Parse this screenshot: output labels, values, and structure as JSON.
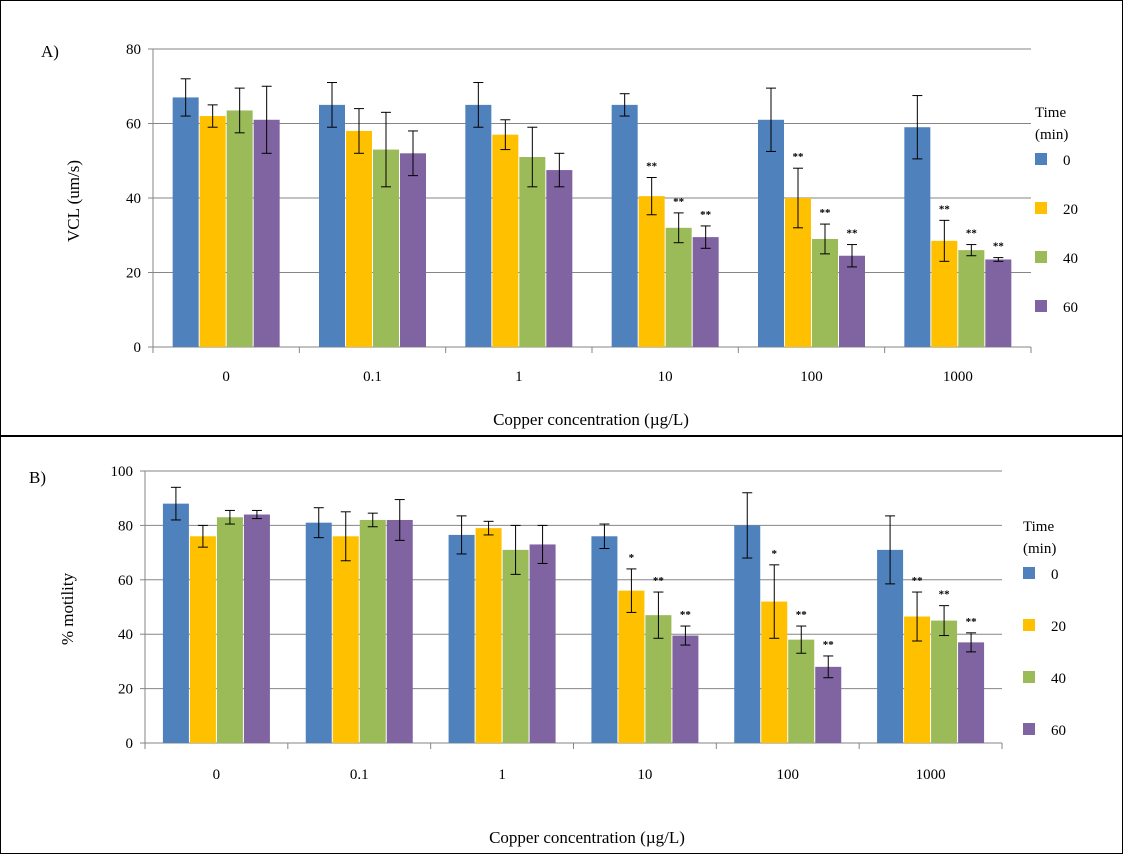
{
  "chart_data": [
    {
      "type": "bar",
      "panel_label": "A)",
      "title": "",
      "xlabel": "Copper concentration (µg/L)",
      "ylabel": "VCL (um/s)",
      "ylim": [
        0,
        80
      ],
      "yticks": [
        0,
        20,
        40,
        60,
        80
      ],
      "grid": true,
      "legend_position": "right",
      "legend_title": [
        "Time",
        "(min)"
      ],
      "categories": [
        "0",
        "0.1",
        "1",
        "10",
        "100",
        "1000"
      ],
      "series": [
        {
          "name": "0",
          "color": "#4F81BD",
          "values": [
            67,
            65,
            65,
            65,
            61,
            59
          ],
          "errors": [
            5,
            6,
            6,
            3,
            8.5,
            8.5
          ],
          "sig": [
            "",
            "",
            "",
            "",
            "",
            ""
          ]
        },
        {
          "name": "20",
          "color": "#FFC000",
          "values": [
            62,
            58,
            57,
            40.5,
            40,
            28.5
          ],
          "errors": [
            3,
            6,
            4,
            5,
            8,
            5.5
          ],
          "sig": [
            "",
            "",
            "",
            "**",
            "**",
            "**"
          ]
        },
        {
          "name": "40",
          "color": "#9BBB59",
          "values": [
            63.5,
            53,
            51,
            32,
            29,
            26
          ],
          "errors": [
            6,
            10,
            8,
            4,
            4,
            1.5
          ],
          "sig": [
            "",
            "",
            "",
            "**",
            "**",
            "**"
          ]
        },
        {
          "name": "60",
          "color": "#8064A2",
          "values": [
            61,
            52,
            47.5,
            29.5,
            24.5,
            23.5
          ],
          "errors": [
            9,
            6,
            4.5,
            3,
            3,
            0.5
          ],
          "sig": [
            "",
            "",
            "",
            "**",
            "**",
            "**"
          ]
        }
      ]
    },
    {
      "type": "bar",
      "panel_label": "B)",
      "title": "",
      "xlabel": "Copper concentration (µg/L)",
      "ylabel": "% motility",
      "ylim": [
        0,
        100
      ],
      "yticks": [
        0,
        20,
        40,
        60,
        80,
        100
      ],
      "grid": true,
      "legend_position": "right",
      "legend_title": [
        "Time",
        "(min)"
      ],
      "categories": [
        "0",
        "0.1",
        "1",
        "10",
        "100",
        "1000"
      ],
      "series": [
        {
          "name": "0",
          "color": "#4F81BD",
          "values": [
            88,
            81,
            76.5,
            76,
            80,
            71
          ],
          "errors": [
            6,
            5.5,
            7,
            4.5,
            12,
            12.5
          ],
          "sig": [
            "",
            "",
            "",
            "",
            "",
            ""
          ]
        },
        {
          "name": "20",
          "color": "#FFC000",
          "values": [
            76,
            76,
            79,
            56,
            52,
            46.5
          ],
          "errors": [
            4,
            9,
            2.5,
            8,
            13.5,
            9
          ],
          "sig": [
            "",
            "",
            "",
            "*",
            "*",
            "**"
          ]
        },
        {
          "name": "40",
          "color": "#9BBB59",
          "values": [
            83,
            82,
            71,
            47,
            38,
            45
          ],
          "errors": [
            2.5,
            2.5,
            9,
            8.5,
            5,
            5.5
          ],
          "sig": [
            "",
            "",
            "",
            "**",
            "**",
            "**"
          ]
        },
        {
          "name": "60",
          "color": "#8064A2",
          "values": [
            84,
            82,
            73,
            39.5,
            28,
            37
          ],
          "errors": [
            1.5,
            7.5,
            7,
            3.5,
            4,
            3.5
          ],
          "sig": [
            "",
            "",
            "",
            "**",
            "**",
            "**"
          ]
        }
      ]
    }
  ]
}
